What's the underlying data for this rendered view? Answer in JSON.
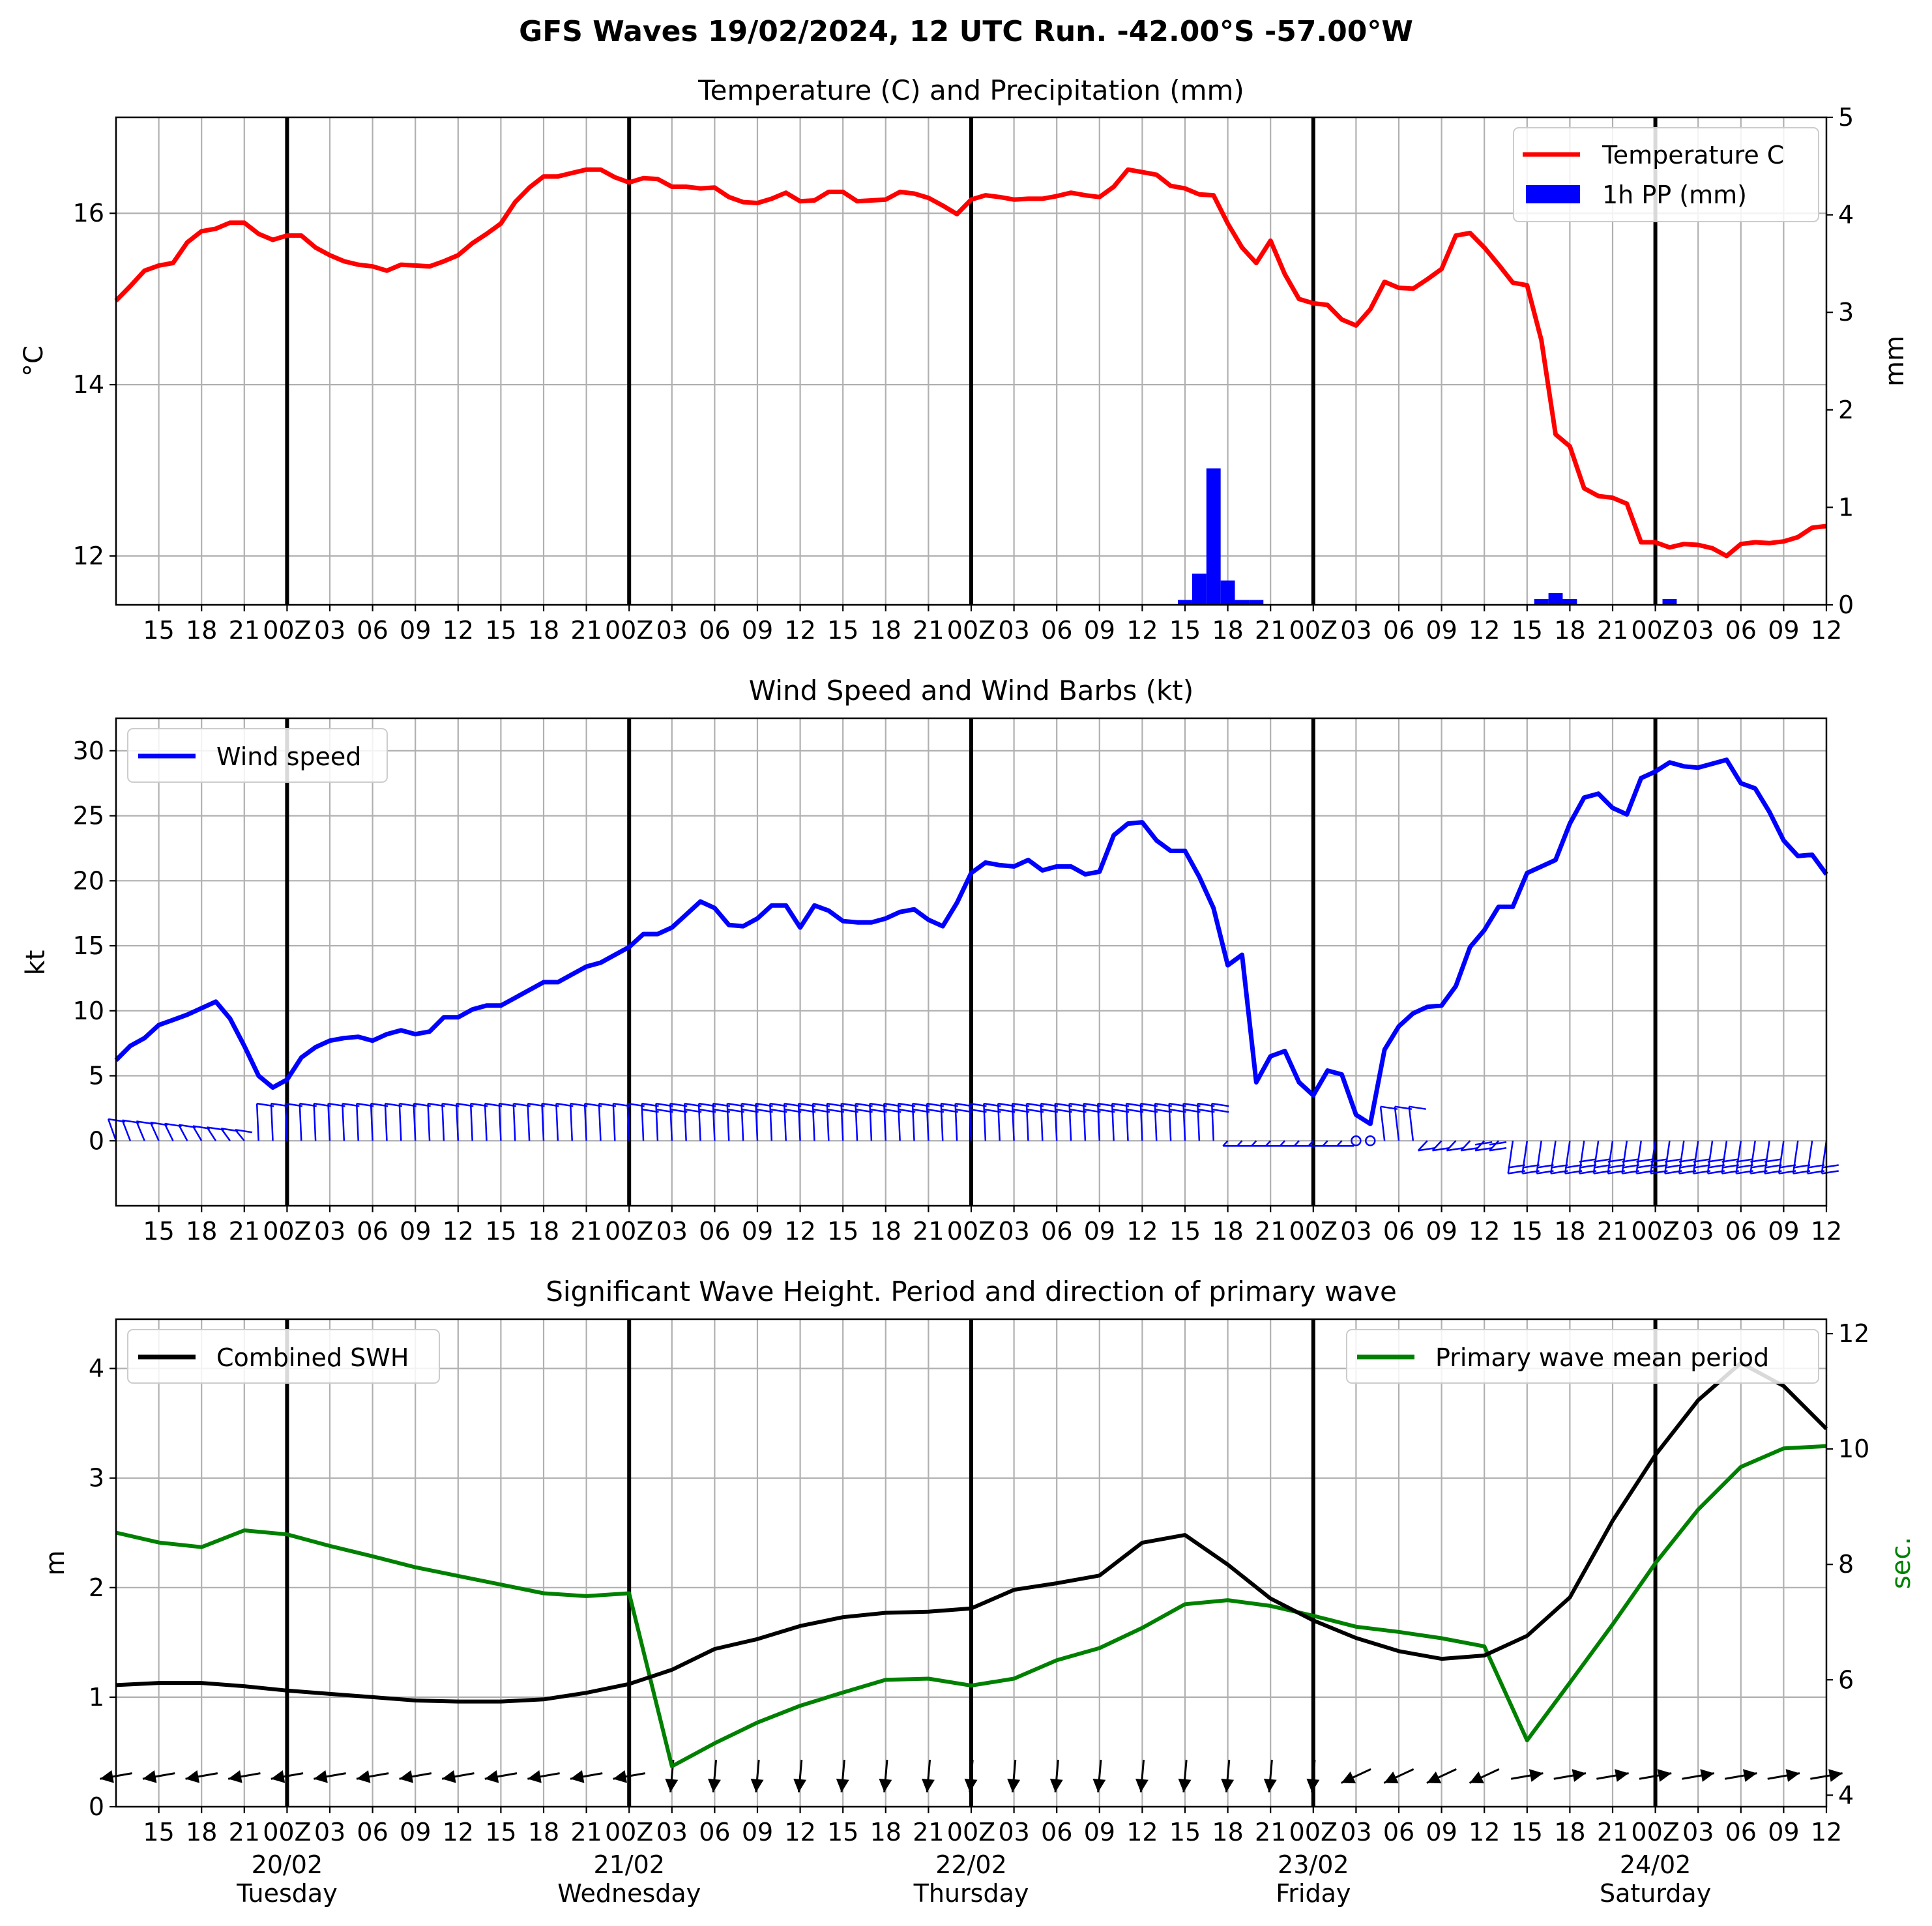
{
  "suptitle": "GFS Waves 19/02/2024, 12 UTC Run. -42.00°S -57.00°W",
  "colors": {
    "temperature": "#ff0000",
    "precip": "#0000ff",
    "wind": "#0000ff",
    "barbs": "#0000ff",
    "swh": "#000000",
    "period": "#008000",
    "arrows": "#000000",
    "grid": "#b0b0b0"
  },
  "time_axis": {
    "start": "19/02 12Z",
    "end": "24/02 12Z",
    "unit": "hours",
    "hour_ticks": [
      "15",
      "18",
      "21",
      "00Z",
      "03",
      "06",
      "09",
      "12",
      "15",
      "18",
      "21",
      "00Z",
      "03",
      "06",
      "09",
      "12",
      "15",
      "18",
      "21",
      "00Z",
      "03",
      "06",
      "09",
      "12",
      "15",
      "18",
      "21",
      "00Z",
      "03",
      "06",
      "09",
      "12",
      "15",
      "18",
      "21",
      "00Z",
      "03",
      "06",
      "09",
      "12"
    ],
    "days": [
      {
        "date": "20/02",
        "weekday": "Tuesday"
      },
      {
        "date": "21/02",
        "weekday": "Wednesday"
      },
      {
        "date": "22/02",
        "weekday": "Thursday"
      },
      {
        "date": "23/02",
        "weekday": "Friday"
      },
      {
        "date": "24/02",
        "weekday": "Saturday"
      }
    ]
  },
  "chart_data": [
    {
      "type": "line",
      "title": "Temperature (C) and Precipitation (mm)",
      "ylabel": "$^\\circ$C",
      "ylabel_right": "mm",
      "ylim": [
        11.43,
        17.12
      ],
      "ylim_right": [
        0,
        5
      ],
      "yticks": [
        12,
        14,
        16
      ],
      "yticks_right": [
        0,
        1,
        2,
        3,
        4,
        5
      ],
      "grid": true,
      "legend": "upper right",
      "series": [
        {
          "name": "Temperature C",
          "color": "#ff0000",
          "x_hours": "0..120 step 1",
          "values": [
            14.98,
            15.15,
            15.33,
            15.39,
            15.42,
            15.66,
            15.79,
            15.82,
            15.89,
            15.89,
            15.76,
            15.69,
            15.74,
            15.74,
            15.6,
            15.51,
            15.44,
            15.4,
            15.38,
            15.33,
            15.4,
            15.39,
            15.38,
            15.44,
            15.51,
            15.65,
            15.76,
            15.88,
            16.13,
            16.3,
            16.43,
            16.43,
            16.47,
            16.51,
            16.51,
            16.42,
            16.36,
            16.41,
            16.4,
            16.31,
            16.31,
            16.29,
            16.3,
            16.19,
            16.13,
            16.12,
            16.17,
            16.24,
            16.14,
            16.15,
            16.25,
            16.25,
            16.14,
            16.15,
            16.16,
            16.25,
            16.23,
            16.18,
            16.09,
            15.99,
            16.16,
            16.21,
            16.19,
            16.16,
            16.17,
            16.17,
            16.2,
            16.24,
            16.21,
            16.19,
            16.31,
            16.51,
            16.48,
            16.45,
            16.32,
            16.29,
            16.22,
            16.21,
            15.88,
            15.6,
            15.42,
            15.68,
            15.29,
            15.0,
            14.95,
            14.93,
            14.76,
            14.69,
            14.88,
            15.2,
            15.13,
            15.12,
            15.23,
            15.35,
            15.74,
            15.77,
            15.6,
            15.4,
            15.19,
            15.16,
            14.52,
            13.42,
            13.28,
            12.79,
            12.7,
            12.68,
            12.61,
            12.16,
            12.16,
            12.1,
            12.14,
            12.13,
            12.09,
            12.0,
            12.14,
            12.16,
            12.15,
            12.17,
            12.22,
            12.33,
            12.35
          ]
        },
        {
          "name": "1h PP (mm)",
          "type": "bar",
          "color": "#0000ff",
          "axis": "right",
          "x_hours": [
            75,
            76,
            77,
            78,
            79,
            80,
            100,
            101,
            102,
            109
          ],
          "values": [
            0.05,
            0.32,
            1.4,
            0.25,
            0.05,
            0.05,
            0.06,
            0.12,
            0.06,
            0.06
          ]
        }
      ]
    },
    {
      "type": "line",
      "title": "Wind Speed and Wind Barbs (kt)",
      "ylabel": "kt",
      "ylim": [
        -5,
        32.5
      ],
      "yticks": [
        0,
        5,
        10,
        15,
        20,
        25,
        30
      ],
      "grid": true,
      "legend": "upper left",
      "series": [
        {
          "name": "Wind speed",
          "color": "#0000ff",
          "x_hours": "0..120 step 1",
          "values": [
            6.2,
            7.3,
            7.9,
            8.9,
            9.3,
            9.7,
            10.2,
            10.7,
            9.4,
            7.3,
            5.0,
            4.1,
            4.7,
            6.4,
            7.2,
            7.7,
            7.9,
            8.0,
            7.7,
            8.2,
            8.5,
            8.2,
            8.4,
            9.5,
            9.5,
            10.1,
            10.4,
            10.4,
            11.0,
            11.6,
            12.2,
            12.2,
            12.8,
            13.4,
            13.7,
            14.3,
            14.9,
            15.9,
            15.9,
            16.4,
            17.4,
            18.4,
            17.9,
            16.6,
            16.5,
            17.1,
            18.1,
            18.1,
            16.4,
            18.1,
            17.7,
            16.9,
            16.8,
            16.8,
            17.1,
            17.6,
            17.8,
            17.0,
            16.5,
            18.3,
            20.6,
            21.4,
            21.2,
            21.1,
            21.6,
            20.8,
            21.1,
            21.1,
            20.5,
            20.7,
            23.5,
            24.4,
            24.5,
            23.1,
            22.3,
            22.3,
            20.3,
            17.9,
            13.5,
            14.3,
            4.5,
            6.5,
            6.9,
            4.5,
            3.5,
            5.4,
            5.1,
            2.0,
            1.3,
            7.0,
            8.8,
            9.8,
            10.3,
            10.4,
            11.9,
            14.9,
            16.2,
            18.0,
            18.0,
            20.6,
            21.1,
            21.6,
            24.4,
            26.4,
            26.7,
            25.6,
            25.1,
            27.9,
            28.4,
            29.1,
            28.8,
            28.7,
            29.0,
            29.3,
            27.5,
            27.1,
            25.3,
            23.1,
            21.9,
            22.0,
            20.5
          ]
        },
        {
          "name": "Wind barbs",
          "type": "barb",
          "color": "#0000ff",
          "x_hours": "0..120 step 1",
          "length_kt": 3.0,
          "note": "barb staff direction per hour"
        }
      ]
    },
    {
      "type": "line",
      "title": "Significant Wave Height. Period and direction of primary wave",
      "ylabel": "m",
      "ylabel_right": "sec.",
      "ylim": [
        0,
        4.45
      ],
      "ylim_right": [
        3.8,
        12.25
      ],
      "yticks": [
        0,
        1,
        2,
        3,
        4
      ],
      "yticks_right": [
        4,
        6,
        8,
        10,
        12
      ],
      "grid": true,
      "legends": [
        "upper left",
        "upper right"
      ],
      "series": [
        {
          "name": "Combined SWH",
          "color": "#000000",
          "x_hours": "0..120 step 3",
          "values": [
            1.11,
            1.13,
            1.13,
            1.1,
            1.06,
            1.03,
            1.0,
            0.97,
            0.96,
            0.96,
            0.98,
            1.04,
            1.12,
            1.25,
            1.44,
            1.53,
            1.65,
            1.73,
            1.77,
            1.78,
            1.81,
            1.98,
            2.04,
            2.11,
            2.41,
            2.48,
            2.21,
            1.9,
            1.7,
            1.54,
            1.42,
            1.35,
            1.38,
            1.56,
            1.91,
            2.61,
            3.21,
            3.71,
            4.05,
            3.84,
            3.45
          ]
        },
        {
          "name": "Primary wave mean period",
          "color": "#008000",
          "axis": "right",
          "x_hours": "0..120 step 3",
          "values": [
            8.55,
            8.38,
            8.3,
            8.59,
            8.52,
            8.32,
            8.14,
            7.95,
            7.8,
            7.65,
            7.5,
            7.45,
            7.5,
            4.5,
            4.9,
            5.26,
            5.55,
            5.78,
            6.0,
            6.02,
            5.9,
            6.02,
            6.34,
            6.55,
            6.9,
            7.31,
            7.38,
            7.28,
            7.11,
            6.92,
            6.83,
            6.72,
            6.58,
            4.95,
            5.95,
            6.96,
            8.02,
            8.95,
            9.69,
            10.01,
            10.05
          ]
        },
        {
          "name": "Primary wave direction",
          "type": "quiver",
          "color": "#000000",
          "x_hours": "0..120 step 3"
        }
      ]
    }
  ]
}
